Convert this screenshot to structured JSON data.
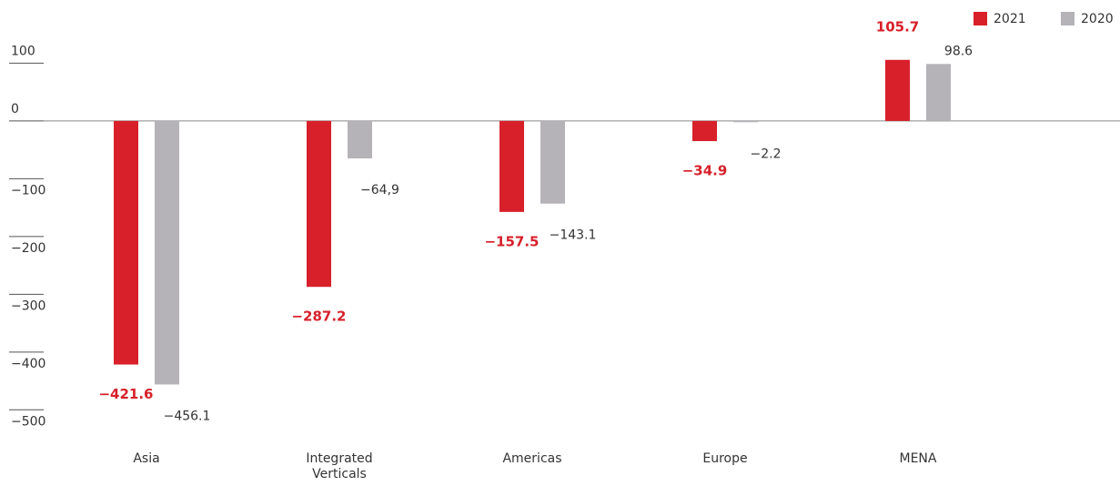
{
  "chart_data": {
    "type": "bar",
    "categories": [
      "Asia",
      "Integrated Verticals",
      "Americas",
      "Europe",
      "MENA"
    ],
    "series": [
      {
        "name": "2021",
        "color": "#d7202a",
        "values": [
          -421.6,
          -287.2,
          -157.5,
          -34.9,
          105.7
        ],
        "value_labels": [
          "−421.6",
          "−287.2",
          "−157.5",
          "−34.9",
          "105.7"
        ]
      },
      {
        "name": "2020",
        "color": "#b5b3b8",
        "values": [
          -456.1,
          -64.9,
          -143.1,
          -2.2,
          98.6
        ],
        "value_labels": [
          "−456.1",
          "−64,9",
          "−143.1",
          "−2.2",
          "98.6"
        ]
      }
    ],
    "ylim": [
      -520,
      140
    ],
    "yticks": [
      100,
      0,
      {
        "value": -100,
        "label": "−100"
      },
      {
        "value": -200,
        "label": "−200"
      },
      {
        "value": -300,
        "label": "−300"
      },
      {
        "value": -400,
        "label": "−400"
      },
      {
        "value": -500,
        "label": "−500"
      }
    ],
    "legend": "top-right"
  }
}
